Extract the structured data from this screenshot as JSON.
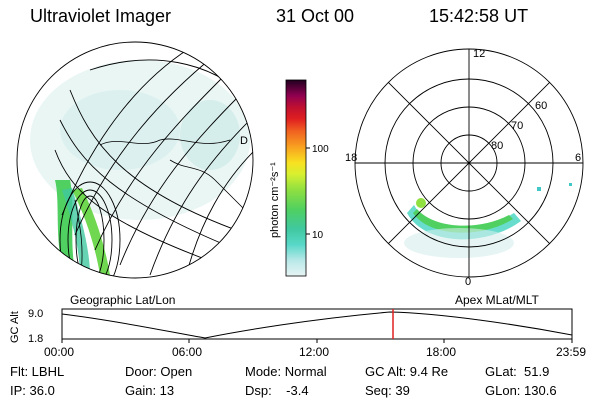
{
  "header": {
    "title": "Ultraviolet Imager",
    "date": "31 Oct 00",
    "time": "15:42:58 UT"
  },
  "left_panel": {
    "caption": "Geographic Lat/Lon",
    "pole_label": "D"
  },
  "right_panel": {
    "caption": "Apex  MLat/MLT",
    "mlt_labels": [
      "12",
      "18",
      "6",
      "0"
    ],
    "mlat_labels": [
      "60",
      "70",
      "80"
    ]
  },
  "colorbar": {
    "label": "photon cm⁻²s⁻¹",
    "ticks": [
      "100",
      "10"
    ],
    "scale": "log",
    "colors": [
      "#e8f4f4",
      "#b8e8e8",
      "#58d8c8",
      "#40c8a0",
      "#50d060",
      "#90e040",
      "#d8f030",
      "#f8e020",
      "#f8a020",
      "#f06020",
      "#e02020",
      "#c01030",
      "#900050",
      "#500040",
      "#200020"
    ]
  },
  "altitude_track": {
    "ylabel": "GC Alt",
    "yticks": [
      "9.0",
      "1.8"
    ],
    "xticks": [
      "00:00",
      "06:00",
      "12:00",
      "18:00",
      "23:59"
    ],
    "marker_color": "#e02020",
    "marker_time": "15:43"
  },
  "status": {
    "flt": "Flt: LBHL",
    "ip": "IP: 36.0",
    "door": "Door: Open",
    "gain": "Gain: 13",
    "mode": "Mode: Normal",
    "dsp": "Dsp:    -3.4",
    "gcalt": "GC Alt: 9.4 Re",
    "seq": "Seq: 39",
    "glat": "GLat:  51.9",
    "glon": "GLon: 130.6"
  }
}
